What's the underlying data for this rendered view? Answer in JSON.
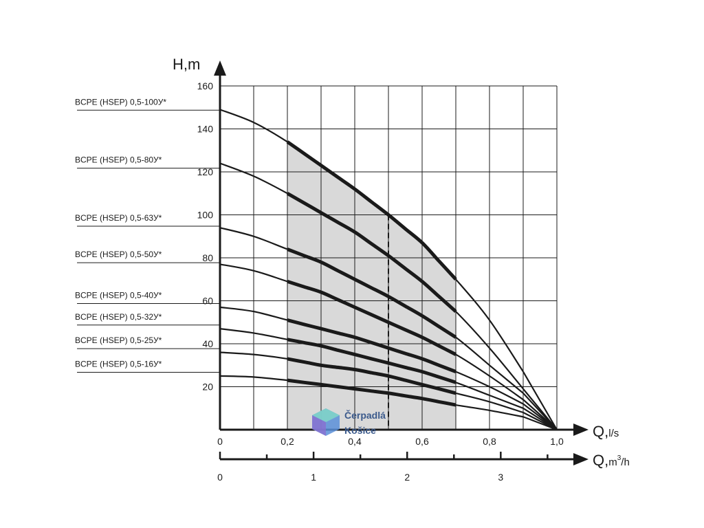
{
  "chart_data": {
    "type": "line",
    "xlabel": "Q,",
    "xunit": "l/s",
    "ylabel": "H,m",
    "x2label": "Q,",
    "x2unit_base": "m",
    "x2unit_sup": "3",
    "x2unit_tail": "/h",
    "xlim": [
      0,
      1.0
    ],
    "ylim": [
      0,
      160
    ],
    "x_ticks": [
      "0",
      "0,2",
      "0,4",
      "0,6",
      "0,8",
      "1,0"
    ],
    "y_ticks": [
      "20",
      "40",
      "60",
      "80",
      "100",
      "120",
      "140",
      "160"
    ],
    "x2_ticks": [
      "0",
      "1",
      "2",
      "3"
    ],
    "x2_tick_values": [
      0,
      1,
      2,
      3
    ],
    "grid": true,
    "operating_range": [
      0.2,
      0.7
    ],
    "nominal_flow": 0.5,
    "series": [
      {
        "name": "BCPE (HSEP) 0,5-100У*",
        "label_y": 150,
        "x": [
          0,
          0.1,
          0.2,
          0.3,
          0.4,
          0.5,
          0.6,
          0.7,
          0.8,
          0.9,
          1.0
        ],
        "y": [
          149,
          143,
          134,
          123,
          112,
          100,
          87,
          70,
          51,
          27,
          0
        ]
      },
      {
        "name": "BCPE (HSEP) 0,5-80У*",
        "label_y": 123,
        "x": [
          0,
          0.1,
          0.2,
          0.3,
          0.4,
          0.5,
          0.6,
          0.7,
          0.8,
          0.9,
          1.0
        ],
        "y": [
          124,
          118,
          110,
          101,
          92,
          81,
          69,
          55,
          38,
          19,
          0
        ]
      },
      {
        "name": "BCPE (HSEP) 0,5-63У*",
        "label_y": 96,
        "x": [
          0,
          0.1,
          0.2,
          0.3,
          0.4,
          0.5,
          0.6,
          0.7,
          0.8,
          0.9,
          1.0
        ],
        "y": [
          94,
          90,
          84,
          78,
          70,
          62,
          53,
          43,
          30,
          17,
          0
        ]
      },
      {
        "name": "BCPE (HSEP) 0,5-50У*",
        "label_y": 79,
        "x": [
          0,
          0.1,
          0.2,
          0.3,
          0.4,
          0.5,
          0.6,
          0.7,
          0.8,
          0.9,
          1.0
        ],
        "y": [
          77,
          74,
          69,
          64,
          57,
          50,
          43,
          35,
          25,
          14,
          0
        ]
      },
      {
        "name": "BCPE (HSEP) 0,5-40У*",
        "label_y": 60,
        "x": [
          0,
          0.1,
          0.2,
          0.3,
          0.4,
          0.5,
          0.6,
          0.7,
          0.8,
          0.9,
          1.0
        ],
        "y": [
          57,
          55,
          51,
          47,
          43,
          38,
          33,
          27,
          20,
          12,
          0
        ]
      },
      {
        "name": "BCPE (HSEP) 0,5-32У*",
        "label_y": 50,
        "x": [
          0,
          0.1,
          0.2,
          0.3,
          0.4,
          0.5,
          0.6,
          0.7,
          0.8,
          0.9,
          1.0
        ],
        "y": [
          47,
          45,
          42,
          39,
          35,
          31,
          27,
          22,
          16,
          10,
          0
        ]
      },
      {
        "name": "BCPE (HSEP) 0,5-25У*",
        "label_y": 39,
        "x": [
          0,
          0.1,
          0.2,
          0.3,
          0.4,
          0.5,
          0.6,
          0.7,
          0.8,
          0.9,
          1.0
        ],
        "y": [
          36,
          35,
          33,
          30,
          28,
          25,
          21,
          17,
          13,
          8,
          0
        ]
      },
      {
        "name": "BCPE (HSEP) 0,5-16У*",
        "label_y": 28,
        "x": [
          0,
          0.1,
          0.2,
          0.3,
          0.4,
          0.5,
          0.6,
          0.7,
          0.8,
          0.9,
          1.0
        ],
        "y": [
          25,
          24.5,
          23,
          21,
          19,
          17,
          14.5,
          11.5,
          9,
          6,
          0
        ]
      }
    ]
  },
  "watermark": {
    "line1": "Čerpadlá",
    "line2": "Košice",
    "icon": "cube-logo-icon",
    "colors": [
      "#5a8fd8",
      "#7fd4c8",
      "#8a6fd0"
    ]
  },
  "colors": {
    "ink": "#1a1a1a",
    "shade": "#d9d9d9"
  }
}
